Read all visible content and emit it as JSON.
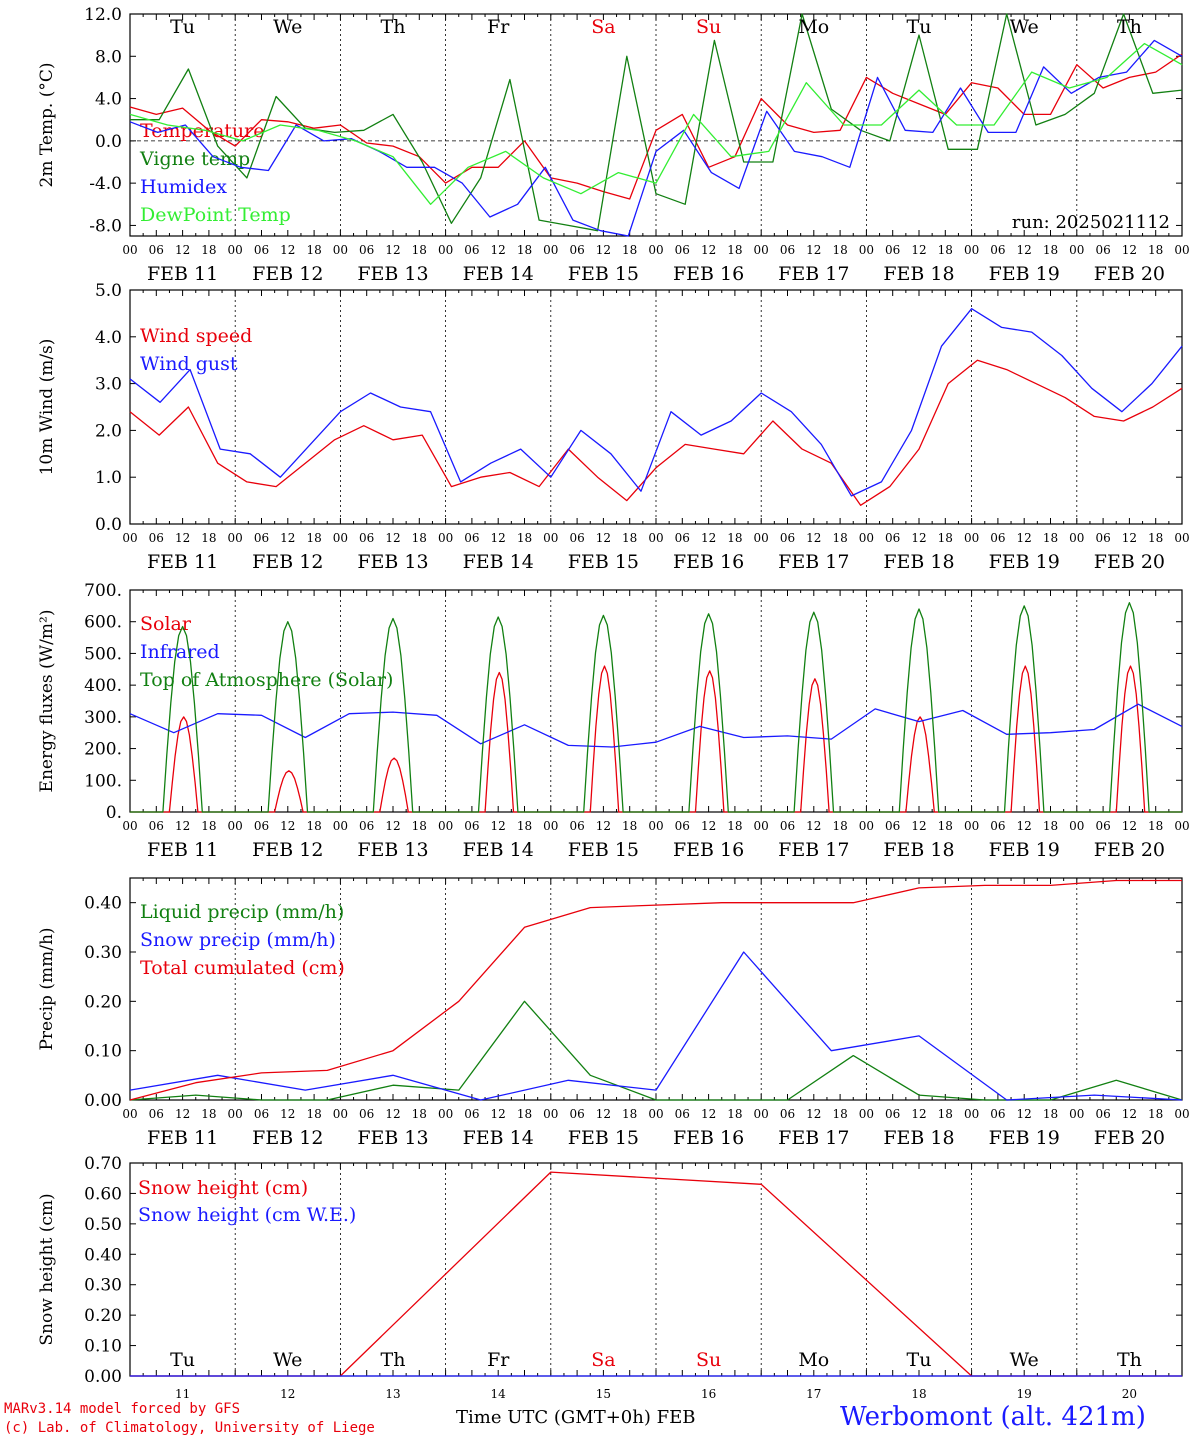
{
  "chart_data": [
    {
      "type": "line",
      "ylabel": "2m Temp. (°C)",
      "ylim": [
        -9.0,
        12.0
      ],
      "yticks": [
        "-8.0",
        "-4.0",
        "0.0",
        "4.0",
        "8.0",
        "12.0"
      ],
      "zero_line": true,
      "annotation": "run: 2025021112",
      "x_hours": [
        0,
        6,
        12,
        18,
        24,
        30,
        36,
        42,
        48,
        54,
        60,
        66,
        72,
        78,
        84,
        90,
        96,
        102,
        108,
        114,
        120,
        126,
        132,
        138,
        144,
        150,
        156,
        162,
        168,
        174,
        180,
        186,
        192,
        198,
        204,
        210,
        216,
        222,
        228,
        234,
        240
      ],
      "series": [
        {
          "name": "Temperature",
          "color": "#e8000b",
          "values": [
            3.2,
            2.5,
            3.1,
            1.0,
            -0.5,
            2.0,
            1.8,
            1.2,
            1.5,
            -0.2,
            -0.5,
            -1.5,
            -4.0,
            -2.5,
            -2.5,
            0.0,
            -3.5,
            -4.0,
            -4.8,
            -5.5,
            1.0,
            2.5,
            -2.5,
            -1.5,
            4.0,
            1.5,
            0.8,
            1.0,
            6.0,
            4.5,
            3.5,
            2.5,
            5.5,
            5.0,
            2.5,
            2.5,
            7.2,
            5.0,
            6.0,
            6.5,
            8.2
          ]
        },
        {
          "name": "Vigne temp",
          "color": "#128012",
          "values": [
            2.0,
            2.0,
            6.8,
            -0.5,
            -3.5,
            4.2,
            1.2,
            0.8,
            1.0,
            2.5,
            -2.0,
            -7.8,
            -3.5,
            5.8,
            -7.5,
            -8.0,
            -8.5,
            8.0,
            -5.0,
            -6.0,
            9.5,
            -2.0,
            -2.0,
            12.0,
            3.0,
            1.0,
            0.0,
            10.0,
            -0.8,
            -0.8,
            12.0,
            1.5,
            2.5,
            4.5,
            12.0,
            4.5,
            4.8
          ]
        },
        {
          "name": "Humidex",
          "color": "#1a1aff",
          "values": [
            1.8,
            0.8,
            1.5,
            -1.5,
            -2.5,
            -2.8,
            1.5,
            0.0,
            0.2,
            -1.0,
            -2.5,
            -2.5,
            -4.0,
            -7.2,
            -6.0,
            -2.5,
            -7.5,
            -8.5,
            -9.0,
            -1.0,
            1.0,
            -3.0,
            -4.5,
            2.8,
            -1.0,
            -1.5,
            -2.5,
            6.0,
            1.0,
            0.8,
            5.0,
            0.8,
            0.8,
            7.0,
            4.5,
            6.0,
            6.5,
            9.5,
            8.0
          ]
        },
        {
          "name": "DewPoint Temp",
          "color": "#33ee33",
          "values": [
            2.5,
            1.5,
            1.0,
            0.0,
            1.5,
            1.0,
            0.0,
            -1.5,
            -6.0,
            -2.5,
            -1.0,
            -3.5,
            -5.0,
            -3.0,
            -4.0,
            2.5,
            -1.5,
            -1.0,
            5.5,
            1.5,
            1.5,
            4.8,
            1.5,
            1.5,
            6.5,
            5.0,
            6.0,
            9.2,
            7.2
          ]
        }
      ]
    },
    {
      "type": "line",
      "ylabel": "10m Wind (m/s)",
      "ylim": [
        0.0,
        5.0
      ],
      "yticks": [
        "0.0",
        "1.0",
        "2.0",
        "3.0",
        "4.0",
        "5.0"
      ],
      "series": [
        {
          "name": "Wind speed",
          "color": "#e8000b",
          "values": [
            2.4,
            1.9,
            2.5,
            1.3,
            0.9,
            0.8,
            1.3,
            1.8,
            2.1,
            1.8,
            1.9,
            0.8,
            1.0,
            1.1,
            0.8,
            1.6,
            1.0,
            0.5,
            1.2,
            1.7,
            1.6,
            1.5,
            2.2,
            1.6,
            1.3,
            0.4,
            0.8,
            1.6,
            3.0,
            3.5,
            3.3,
            3.0,
            2.7,
            2.3,
            2.2,
            2.5,
            2.9
          ]
        },
        {
          "name": "Wind gust",
          "color": "#1a1aff",
          "values": [
            3.1,
            2.6,
            3.3,
            1.6,
            1.5,
            1.0,
            1.7,
            2.4,
            2.8,
            2.5,
            2.4,
            0.9,
            1.3,
            1.6,
            1.0,
            2.0,
            1.5,
            0.7,
            2.4,
            1.9,
            2.2,
            2.8,
            2.4,
            1.7,
            0.6,
            0.9,
            2.0,
            3.8,
            4.6,
            4.2,
            4.1,
            3.6,
            2.9,
            2.4,
            3.0,
            3.8
          ]
        }
      ]
    },
    {
      "type": "line",
      "ylabel": "Energy fluxes (W/m²)",
      "ylim": [
        0,
        700
      ],
      "yticks": [
        "0.",
        "100.",
        "200.",
        "300.",
        "400.",
        "500.",
        "600.",
        "700."
      ],
      "series": [
        {
          "name": "Solar",
          "color": "#e8000b",
          "days_peak": [
            300,
            130,
            170,
            440,
            460,
            445,
            420,
            300,
            460,
            460
          ]
        },
        {
          "name": "Infrared",
          "color": "#1a1aff",
          "values": [
            310,
            250,
            310,
            305,
            235,
            310,
            315,
            305,
            215,
            275,
            210,
            205,
            220,
            270,
            235,
            240,
            230,
            325,
            285,
            320,
            245,
            250,
            260,
            340,
            270
          ]
        },
        {
          "name": "Top of Atmosphere (Solar)",
          "color": "#128012",
          "days_peak": [
            585,
            600,
            610,
            615,
            620,
            625,
            630,
            640,
            650,
            660
          ]
        }
      ]
    },
    {
      "type": "line",
      "ylabel": "Precip (mm/h)",
      "ylim": [
        0.0,
        0.45
      ],
      "yticks": [
        "0.00",
        "0.10",
        "0.20",
        "0.30",
        "0.40"
      ],
      "series": [
        {
          "name": "Liquid precip (mm/h)",
          "color": "#128012",
          "values": [
            0.0,
            0.01,
            0.0,
            0.0,
            0.03,
            0.02,
            0.2,
            0.05,
            0.0,
            0.0,
            0.0,
            0.09,
            0.01,
            0.0,
            0.0,
            0.04,
            0.0
          ]
        },
        {
          "name": "Snow precip (mm/h)",
          "color": "#1a1aff",
          "values": [
            0.02,
            0.05,
            0.02,
            0.05,
            0.0,
            0.04,
            0.02,
            0.3,
            0.1,
            0.13,
            0.0,
            0.01,
            0.0
          ]
        },
        {
          "name": "Total cumulated (cm)",
          "color": "#e8000b",
          "values": [
            0.0,
            0.035,
            0.055,
            0.06,
            0.1,
            0.2,
            0.35,
            0.39,
            0.395,
            0.4,
            0.4,
            0.4,
            0.43,
            0.435,
            0.435,
            0.445,
            0.445
          ]
        }
      ]
    },
    {
      "type": "line",
      "ylabel": "Snow height (cm)",
      "ylim": [
        0.0,
        0.7
      ],
      "yticks": [
        "0.00",
        "0.10",
        "0.20",
        "0.30",
        "0.40",
        "0.50",
        "0.60",
        "0.70"
      ],
      "series": [
        {
          "name": "Snow height (cm)",
          "color": "#e8000b",
          "values": [
            0.0,
            0.0,
            0.67,
            0.63,
            0.0,
            0.0
          ]
        },
        {
          "name": "Snow height (cm W.E.)",
          "color": "#1a1aff",
          "values": [
            0.0,
            0.0
          ]
        }
      ]
    }
  ],
  "time_axis": {
    "hour_labels": [
      "00",
      "06",
      "12",
      "18"
    ],
    "final_hour_label": "00",
    "date_labels": [
      "FEB 11",
      "FEB 12",
      "FEB 13",
      "FEB 14",
      "FEB 15",
      "FEB 16",
      "FEB 17",
      "FEB 18",
      "FEB 19",
      "FEB 20"
    ],
    "weekdays": [
      "Tu",
      "We",
      "Th",
      "Fr",
      "Sa",
      "Su",
      "Mo",
      "Tu",
      "We",
      "Th"
    ],
    "weekend_days": [
      4,
      5
    ],
    "weekday_color": "#000000",
    "weekend_color": "#e8000b",
    "day_numbers": [
      "11",
      "12",
      "13",
      "14",
      "15",
      "16",
      "17",
      "18",
      "19",
      "20"
    ]
  },
  "footer": {
    "model_line": "MARv3.14 model forced by GFS",
    "lab_line": "(c) Lab. of Climatology, University of Liege",
    "time_label": "Time UTC (GMT+0h) FEB",
    "station": "Werbomont (alt. 421m)"
  }
}
